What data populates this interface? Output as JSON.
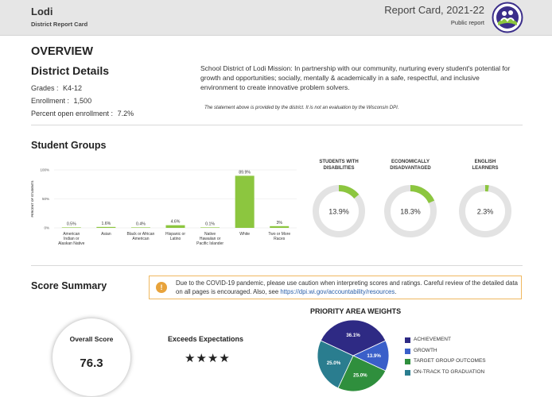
{
  "header": {
    "district_name": "Lodi",
    "subtitle": "District Report Card",
    "report_title": "Report Card, 2021-22",
    "report_type": "Public report",
    "logo_icon": "district-logo-icon"
  },
  "overview": {
    "heading": "OVERVIEW",
    "details_title": "District Details",
    "grades_label": "Grades :",
    "grades_value": "K4-12",
    "enrollment_label": "Enrollment :",
    "enrollment_value": "1,500",
    "open_enrollment_label": "Percent open enrollment :",
    "open_enrollment_value": "7.2%",
    "mission": "School District of Lodi Mission: In partnership with our community, nurturing every student's potential for growth and opportunities; socially, mentally & academically in a safe, respectful, and inclusive environment to create innovative problem solvers.",
    "mission_note": "The statement above is provided by the district. It is not an evaluation by the Wisconsin DPI."
  },
  "student_groups": {
    "title": "Student Groups",
    "chart_data": {
      "type": "bar",
      "ylabel": "PERCENT OF STUDENTS",
      "yticks": [
        "100%",
        "50%",
        "0%"
      ],
      "ylim": [
        0,
        100
      ],
      "categories": [
        [
          "American",
          "Indian or",
          "Alaskan Native"
        ],
        [
          "Asian"
        ],
        [
          "Black or African",
          "American"
        ],
        [
          "Hispanic or",
          "Latino"
        ],
        [
          "Native",
          "Hawaiian or",
          "Pacific Islander"
        ],
        [
          "White"
        ],
        [
          "Two or More",
          "Races"
        ]
      ],
      "values": [
        0.5,
        1.6,
        0.4,
        4.6,
        0.1,
        89.9,
        3
      ],
      "labels": [
        "0.5%",
        "1.6%",
        "0.4%",
        "4.6%",
        "0.1%",
        "89.9%",
        "3%"
      ],
      "bar_color": "#8cc63f"
    },
    "donuts": [
      {
        "title": [
          "STUDENTS WITH",
          "DISABILITIES"
        ],
        "value": 13.9,
        "label": "13.9%"
      },
      {
        "title": [
          "ECONOMICALLY",
          "DISADVANTAGED"
        ],
        "value": 18.3,
        "label": "18.3%"
      },
      {
        "title": [
          "ENGLISH",
          "LEARNERS"
        ],
        "value": 2.3,
        "label": "2.3%"
      }
    ],
    "donut_fill_color": "#8cc63f",
    "donut_track_color": "#e3e3e3"
  },
  "score_summary": {
    "title": "Score Summary",
    "alert_icon": "exclamation-icon",
    "alert_text": "Due to the COVID-19 pandemic, please use caution when interpreting scores and ratings. Careful review of the detailed data on all pages is encouraged. Also, see ",
    "alert_link": "https://dpi.wi.gov/accountability/resources",
    "alert_end": ".",
    "overall_label": "Overall Score",
    "overall_value": "76.3",
    "rating_label": "Exceeds Expectations",
    "stars_text": "★★★★",
    "star_count": 4
  },
  "priority_weights": {
    "title": "PRIORITY AREA WEIGHTS",
    "chart_data": {
      "type": "pie",
      "slices": [
        {
          "name": "ACHIEVEMENT",
          "value": 36.1,
          "label": "36.1%",
          "color": "#2e2a84"
        },
        {
          "name": "GROWTH",
          "value": 13.9,
          "label": "13.9%",
          "color": "#3a5fc9"
        },
        {
          "name": "TARGET GROUP OUTCOMES",
          "value": 25.0,
          "label": "25.0%",
          "color": "#2f8f3d"
        },
        {
          "name": "ON-TRACK TO GRADUATION",
          "value": 25.0,
          "label": "25.0%",
          "color": "#2a7d8f"
        }
      ]
    }
  }
}
